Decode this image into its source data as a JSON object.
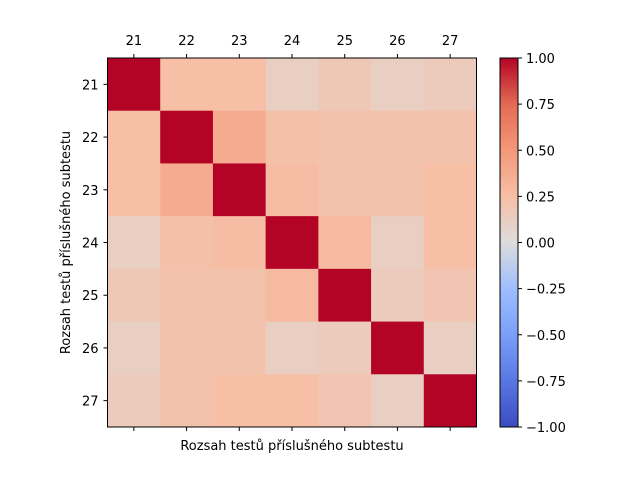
{
  "chart_data": {
    "type": "heatmap",
    "row_labels": [
      "21",
      "22",
      "23",
      "24",
      "25",
      "26",
      "27"
    ],
    "col_labels": [
      "21",
      "22",
      "23",
      "24",
      "25",
      "26",
      "27"
    ],
    "values": [
      [
        1.0,
        0.25,
        0.25,
        0.12,
        0.18,
        0.12,
        0.15
      ],
      [
        0.25,
        1.0,
        0.38,
        0.24,
        0.22,
        0.22,
        0.22
      ],
      [
        0.25,
        0.38,
        1.0,
        0.26,
        0.22,
        0.22,
        0.25
      ],
      [
        0.12,
        0.24,
        0.26,
        1.0,
        0.28,
        0.12,
        0.25
      ],
      [
        0.18,
        0.22,
        0.22,
        0.28,
        1.0,
        0.15,
        0.2
      ],
      [
        0.12,
        0.22,
        0.22,
        0.12,
        0.15,
        1.0,
        0.12
      ],
      [
        0.15,
        0.22,
        0.25,
        0.25,
        0.2,
        0.12,
        1.0
      ]
    ],
    "xlabel": "Rozsah testů příslušného subtestu",
    "ylabel": "Rozsah testů příslušného subtestu",
    "colormap": "coolwarm",
    "vmin": -1.0,
    "vmax": 1.0,
    "colorbar_ticks": [
      "1.00",
      "0.75",
      "0.50",
      "0.25",
      "0.00",
      "−0.25",
      "−0.50",
      "−0.75",
      "−1.00"
    ],
    "x_tick_position": "top",
    "grid": false
  }
}
